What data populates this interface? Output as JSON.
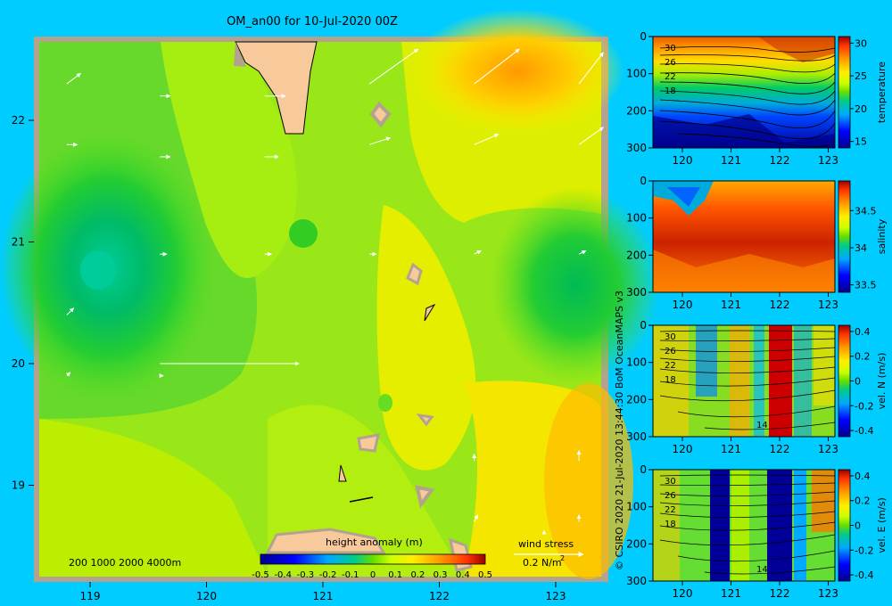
{
  "title": "OM_an00 for 10-Jul-2020 00Z",
  "credit": "© CSIRO 2020  21-Jul-2020 13:44:30 BoM OceanMAPS v3",
  "chart_data": [
    {
      "type": "heatmap",
      "name": "height anomaly map",
      "xticks": [
        "119",
        "120",
        "121",
        "122",
        "123"
      ],
      "yticks": [
        "22",
        "21",
        "20",
        "19"
      ],
      "colorbar_label": "height anomaly (m)",
      "colorbar_ticks": [
        "-0.5",
        "-0.4",
        "-0.3",
        "-0.2",
        "-0.1",
        "0",
        "0.1",
        "0.2",
        "0.3",
        "0.4",
        "0.5"
      ],
      "clim": [
        -0.5,
        0.5
      ],
      "depth_legend": "200  1000  2000  4000m",
      "wind_legend_label": "wind stress",
      "wind_legend_value": "0.2 N/m",
      "wind_legend_exp": "2",
      "wind_vectors": [
        {
          "lon": 118.8,
          "lat": 21.8,
          "u": 0.03,
          "v": 0.0
        },
        {
          "lon": 119.6,
          "lat": 21.7,
          "u": 0.03,
          "v": 0.0
        },
        {
          "lon": 120.5,
          "lat": 21.7,
          "u": 0.04,
          "v": 0.0
        },
        {
          "lon": 121.4,
          "lat": 21.8,
          "u": 0.06,
          "v": 0.02
        },
        {
          "lon": 122.3,
          "lat": 21.8,
          "u": 0.07,
          "v": 0.03
        },
        {
          "lon": 123.2,
          "lat": 21.8,
          "u": 0.07,
          "v": 0.05
        },
        {
          "lon": 118.8,
          "lat": 22.3,
          "u": 0.04,
          "v": 0.03
        },
        {
          "lon": 119.6,
          "lat": 22.2,
          "u": 0.03,
          "v": 0.0
        },
        {
          "lon": 120.5,
          "lat": 22.2,
          "u": 0.06,
          "v": 0.0
        },
        {
          "lon": 121.4,
          "lat": 22.3,
          "u": 0.14,
          "v": 0.1
        },
        {
          "lon": 122.3,
          "lat": 22.3,
          "u": 0.13,
          "v": 0.1
        },
        {
          "lon": 123.2,
          "lat": 22.3,
          "u": 0.07,
          "v": 0.09
        },
        {
          "lon": 118.8,
          "lat": 20.4,
          "u": 0.02,
          "v": 0.02
        },
        {
          "lon": 119.6,
          "lat": 20.9,
          "u": 0.02,
          "v": 0.0
        },
        {
          "lon": 120.5,
          "lat": 20.9,
          "u": 0.02,
          "v": 0.0
        },
        {
          "lon": 121.4,
          "lat": 20.9,
          "u": 0.02,
          "v": 0.0
        },
        {
          "lon": 122.3,
          "lat": 20.9,
          "u": 0.02,
          "v": 0.01
        },
        {
          "lon": 123.2,
          "lat": 20.9,
          "u": 0.02,
          "v": 0.01
        },
        {
          "lon": 118.8,
          "lat": 19.9,
          "u": 0.01,
          "v": 0.01
        },
        {
          "lon": 119.6,
          "lat": 19.9,
          "u": 0.01,
          "v": 0.0
        },
        {
          "lon": 119.6,
          "lat": 20.0,
          "u": 0.4,
          "v": 0.0
        },
        {
          "lon": 123.2,
          "lat": 19.2,
          "u": 0.0,
          "v": 0.03
        },
        {
          "lon": 123.2,
          "lat": 18.7,
          "u": 0.0,
          "v": 0.02
        },
        {
          "lon": 122.3,
          "lat": 19.2,
          "u": 0.0,
          "v": 0.02
        },
        {
          "lon": 122.3,
          "lat": 18.7,
          "u": 0.01,
          "v": 0.02
        },
        {
          "lon": 122.9,
          "lat": 18.6,
          "u": 0.0,
          "v": 0.01
        }
      ]
    },
    {
      "type": "heatmap",
      "name": "temperature section",
      "xticks": [
        "120",
        "121",
        "122",
        "123"
      ],
      "yticks": [
        "0",
        "100",
        "200",
        "300"
      ],
      "ylim": [
        300,
        0
      ],
      "colorbar_label": "temperature",
      "colorbar_ticks": [
        "30",
        "25",
        "20",
        "15"
      ],
      "clim": [
        14,
        31
      ],
      "contour_labels": [
        "30",
        "26",
        "22",
        "18"
      ]
    },
    {
      "type": "heatmap",
      "name": "salinity section",
      "xticks": [
        "120",
        "121",
        "122",
        "123"
      ],
      "yticks": [
        "0",
        "100",
        "200",
        "300"
      ],
      "ylim": [
        300,
        0
      ],
      "colorbar_label": "salinity",
      "colorbar_ticks": [
        "34.5",
        "34",
        "33.5"
      ],
      "clim": [
        33.4,
        34.9
      ]
    },
    {
      "type": "heatmap",
      "name": "north velocity section",
      "xticks": [
        "120",
        "121",
        "122",
        "123"
      ],
      "yticks": [
        "0",
        "100",
        "200",
        "300"
      ],
      "ylim": [
        300,
        0
      ],
      "colorbar_label": "vel. N (m/s)",
      "colorbar_ticks": [
        "0.4",
        "0.2",
        "0",
        "-0.2",
        "-0.4"
      ],
      "clim": [
        -0.45,
        0.45
      ],
      "contour_labels": [
        "30",
        "26",
        "22",
        "18",
        "14"
      ]
    },
    {
      "type": "heatmap",
      "name": "east velocity section",
      "xticks": [
        "120",
        "121",
        "122",
        "123"
      ],
      "yticks": [
        "0",
        "100",
        "200",
        "300"
      ],
      "ylim": [
        300,
        0
      ],
      "colorbar_label": "vel. E (m/s)",
      "colorbar_ticks": [
        "0.4",
        "0.2",
        "0",
        "-0.2",
        "-0.4"
      ],
      "clim": [
        -0.45,
        0.45
      ],
      "contour_labels": [
        "30",
        "26",
        "22",
        "18",
        "14"
      ]
    }
  ]
}
